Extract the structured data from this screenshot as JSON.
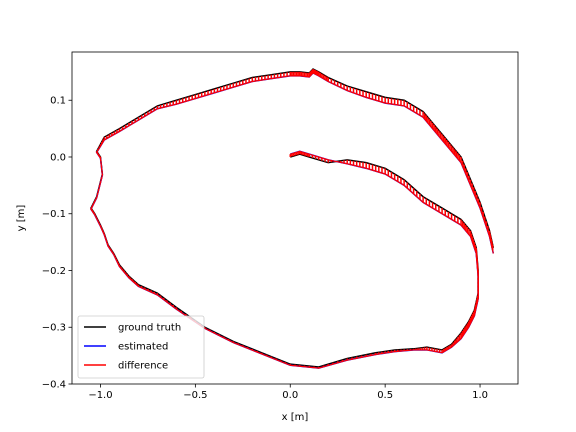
{
  "chart_data": {
    "type": "line",
    "xlabel": "x [m]",
    "ylabel": "y [m]",
    "xlim": [
      -1.15,
      1.2
    ],
    "ylim": [
      -0.4,
      0.185
    ],
    "xticks": [
      -1.0,
      -0.5,
      0.0,
      0.5,
      1.0
    ],
    "xtick_labels": [
      "−1.0",
      "−0.5",
      "0.0",
      "0.5",
      "1.0"
    ],
    "yticks": [
      -0.4,
      -0.3,
      -0.2,
      -0.1,
      0.0,
      0.1
    ],
    "ytick_labels": [
      "−0.4",
      "−0.3",
      "−0.2",
      "−0.1",
      "0.0",
      "0.1"
    ],
    "grid": false,
    "legend_position": "lower-left",
    "series": [
      {
        "name": "ground truth",
        "color": "#000000",
        "x": [
          0.0,
          0.05,
          0.1,
          0.2,
          0.3,
          0.4,
          0.5,
          0.6,
          0.7,
          0.8,
          0.9,
          0.95,
          0.98,
          0.99,
          0.99,
          0.97,
          0.94,
          0.9,
          0.85,
          0.8,
          0.72,
          0.65,
          0.55,
          0.45,
          0.3,
          0.15,
          0.0,
          -0.15,
          -0.3,
          -0.45,
          -0.6,
          -0.7,
          -0.8,
          -0.85,
          -0.9,
          -0.93,
          -0.96,
          -0.98,
          -1.0,
          -1.03,
          -1.05,
          -1.02,
          -0.99,
          -1.0,
          -1.02,
          -0.98,
          -0.9,
          -0.8,
          -0.7,
          -0.6,
          -0.5,
          -0.4,
          -0.3,
          -0.2,
          -0.1,
          0.0,
          0.05,
          0.1,
          0.12,
          0.15,
          0.2,
          0.3,
          0.4,
          0.5,
          0.6,
          0.7,
          0.75,
          0.8,
          0.85,
          0.9,
          0.95,
          1.0,
          1.05,
          1.07
        ],
        "y": [
          0.0,
          0.005,
          0.0,
          -0.01,
          -0.005,
          -0.01,
          -0.02,
          -0.04,
          -0.07,
          -0.09,
          -0.11,
          -0.13,
          -0.16,
          -0.2,
          -0.24,
          -0.27,
          -0.29,
          -0.31,
          -0.33,
          -0.34,
          -0.335,
          -0.338,
          -0.34,
          -0.345,
          -0.355,
          -0.37,
          -0.365,
          -0.345,
          -0.325,
          -0.3,
          -0.265,
          -0.24,
          -0.225,
          -0.21,
          -0.19,
          -0.17,
          -0.155,
          -0.135,
          -0.12,
          -0.1,
          -0.09,
          -0.07,
          -0.03,
          0.0,
          0.01,
          0.035,
          0.05,
          0.07,
          0.09,
          0.1,
          0.11,
          0.12,
          0.13,
          0.14,
          0.145,
          0.15,
          0.15,
          0.148,
          0.155,
          0.15,
          0.14,
          0.125,
          0.115,
          0.105,
          0.1,
          0.08,
          0.06,
          0.04,
          0.02,
          0.0,
          -0.04,
          -0.08,
          -0.13,
          -0.16
        ]
      },
      {
        "name": "estimated",
        "color": "#0000ff",
        "x": [
          0.0,
          0.05,
          0.1,
          0.2,
          0.3,
          0.4,
          0.5,
          0.6,
          0.7,
          0.8,
          0.9,
          0.95,
          0.98,
          0.99,
          0.99,
          0.97,
          0.94,
          0.9,
          0.85,
          0.8,
          0.72,
          0.65,
          0.55,
          0.45,
          0.3,
          0.15,
          0.0,
          -0.15,
          -0.3,
          -0.45,
          -0.6,
          -0.7,
          -0.8,
          -0.85,
          -0.9,
          -0.93,
          -0.96,
          -0.98,
          -1.0,
          -1.03,
          -1.05,
          -1.02,
          -0.99,
          -1.0,
          -1.02,
          -0.98,
          -0.9,
          -0.8,
          -0.7,
          -0.6,
          -0.5,
          -0.4,
          -0.3,
          -0.2,
          -0.1,
          0.0,
          0.05,
          0.1,
          0.12,
          0.15,
          0.2,
          0.3,
          0.4,
          0.5,
          0.6,
          0.7,
          0.75,
          0.8,
          0.85,
          0.9,
          0.95,
          1.0,
          1.05,
          1.07
        ],
        "y": [
          0.005,
          0.01,
          0.005,
          -0.005,
          -0.012,
          -0.02,
          -0.03,
          -0.05,
          -0.08,
          -0.1,
          -0.12,
          -0.14,
          -0.17,
          -0.21,
          -0.25,
          -0.28,
          -0.3,
          -0.32,
          -0.335,
          -0.345,
          -0.34,
          -0.34,
          -0.343,
          -0.348,
          -0.358,
          -0.372,
          -0.367,
          -0.347,
          -0.327,
          -0.302,
          -0.268,
          -0.243,
          -0.228,
          -0.213,
          -0.193,
          -0.172,
          -0.157,
          -0.137,
          -0.122,
          -0.102,
          -0.092,
          -0.072,
          -0.032,
          -0.002,
          0.008,
          0.03,
          0.045,
          0.065,
          0.085,
          0.093,
          0.103,
          0.113,
          0.123,
          0.133,
          0.138,
          0.143,
          0.143,
          0.141,
          0.148,
          0.143,
          0.133,
          0.117,
          0.105,
          0.095,
          0.09,
          0.07,
          0.05,
          0.03,
          0.01,
          -0.01,
          -0.05,
          -0.09,
          -0.14,
          -0.17
        ]
      },
      {
        "name": "difference",
        "color": "#ff0000"
      }
    ]
  }
}
